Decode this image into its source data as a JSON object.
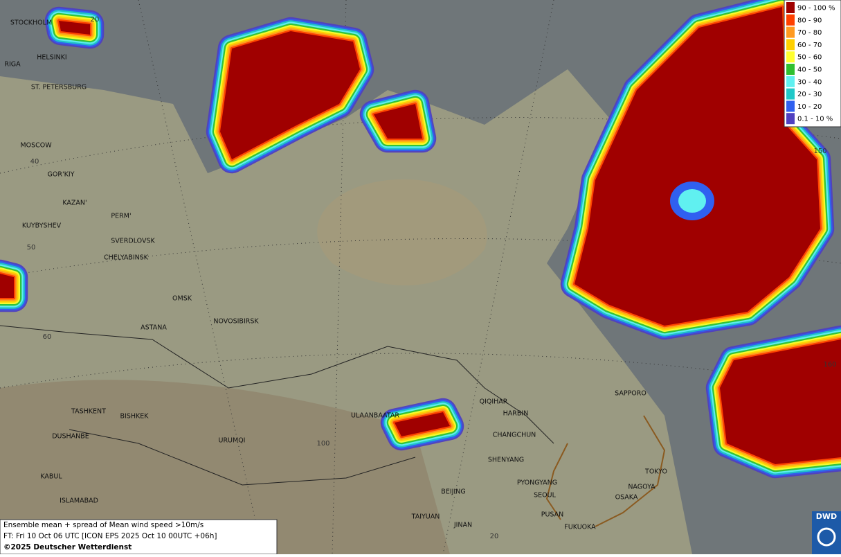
{
  "legend": {
    "items": [
      {
        "label": "90 - 100 %",
        "color": "#a00000"
      },
      {
        "label": "80 - 90",
        "color": "#ff4000"
      },
      {
        "label": "70 - 80",
        "color": "#ff9a20"
      },
      {
        "label": "60 - 70",
        "color": "#ffd000"
      },
      {
        "label": "50 - 60",
        "color": "#ffff30"
      },
      {
        "label": "40 - 50",
        "color": "#30c030"
      },
      {
        "label": "30 - 40",
        "color": "#60f0f0"
      },
      {
        "label": "20 - 30",
        "color": "#20c8c8"
      },
      {
        "label": "10 - 20",
        "color": "#3060f0"
      },
      {
        "label": "0.1 - 10 %",
        "color": "#5040c0"
      }
    ]
  },
  "cities": [
    "STOCKHOLM",
    "HELSINKI",
    "RIGA",
    "ST. PETERSBURG",
    "MOSCOW",
    "GOR'KIY",
    "KAZAN'",
    "PERM'",
    "KUYBYSHEV",
    "SVERDLOVSK",
    "CHELYABINSK",
    "OMSK",
    "ASTANA",
    "NOVOSIBIRSK",
    "TASHKENT",
    "BISHKEK",
    "DUSHANBE",
    "URUMQI",
    "KABUL",
    "ISLAMABAD",
    "ULAANBAATAR",
    "QIQIHAR",
    "HARBIN",
    "CHANGCHUN",
    "SHENYANG",
    "PYONGYANG",
    "BEIJING",
    "SEOUL",
    "TAIYUAN",
    "PUSAN",
    "JINAN",
    "FUKUOKA",
    "SAPPORO",
    "TOKYO",
    "NAGOYA",
    "OSAKA"
  ],
  "grid_labels": [
    "20",
    "40",
    "50",
    "60",
    "100",
    "20",
    "150",
    "160"
  ],
  "info": {
    "line1": "Ensemble mean + spread of Mean wind speed >10m/s",
    "line2": "FT: Fri 10 Oct 06 UTC [ICON EPS 2025 Oct 10 00UTC +06h]",
    "copyright": "©2025 Deutscher Wetterdienst"
  },
  "logo": "DWD"
}
